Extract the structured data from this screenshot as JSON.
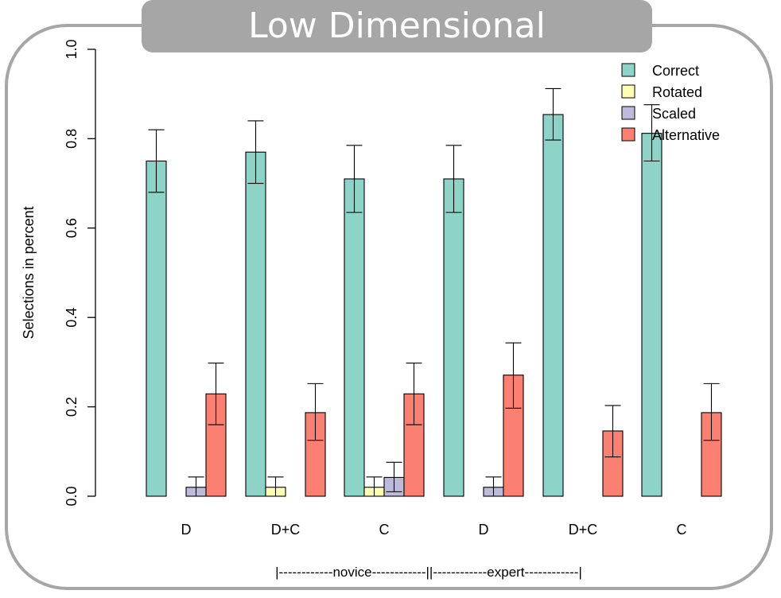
{
  "header": {
    "title": "Low Dimensional"
  },
  "chart_data": {
    "type": "bar",
    "ylabel": "Selections in percent",
    "ylim": [
      0,
      1.0
    ],
    "yticks": [
      "0.0",
      "0.2",
      "0.4",
      "0.6",
      "0.8",
      "1.0"
    ],
    "categories": [
      "D",
      "D+C",
      "C",
      "D",
      "D+C",
      "C"
    ],
    "group_axis_text": "|------------novice------------||------------expert------------|",
    "series": [
      {
        "name": "Correct",
        "color": "#8dd3c7",
        "values": [
          0.75,
          0.77,
          0.71,
          0.71,
          0.854,
          0.812
        ],
        "lower": [
          0.68,
          0.7,
          0.635,
          0.635,
          0.797,
          0.75
        ],
        "upper": [
          0.82,
          0.84,
          0.785,
          0.785,
          0.912,
          0.876
        ]
      },
      {
        "name": "Rotated",
        "color": "#ffffb3",
        "values": [
          0,
          0.02,
          0.02,
          0,
          0,
          0
        ],
        "lower": [
          null,
          0,
          0,
          null,
          null,
          null
        ],
        "upper": [
          null,
          0.043,
          0.043,
          null,
          null,
          null
        ]
      },
      {
        "name": "Scaled",
        "color": "#bebada",
        "values": [
          0.02,
          0,
          0.042,
          0.02,
          0,
          0
        ],
        "lower": [
          0,
          null,
          0.01,
          0,
          null,
          null
        ],
        "upper": [
          0.043,
          null,
          0.076,
          0.043,
          null,
          null
        ]
      },
      {
        "name": "Alternative",
        "color": "#fb8072",
        "values": [
          0.229,
          0.187,
          0.229,
          0.271,
          0.146,
          0.187
        ],
        "lower": [
          0.16,
          0.125,
          0.16,
          0.197,
          0.088,
          0.125
        ],
        "upper": [
          0.298,
          0.252,
          0.298,
          0.343,
          0.203,
          0.252
        ]
      }
    ],
    "legend_position": "top-right",
    "grid": false
  }
}
